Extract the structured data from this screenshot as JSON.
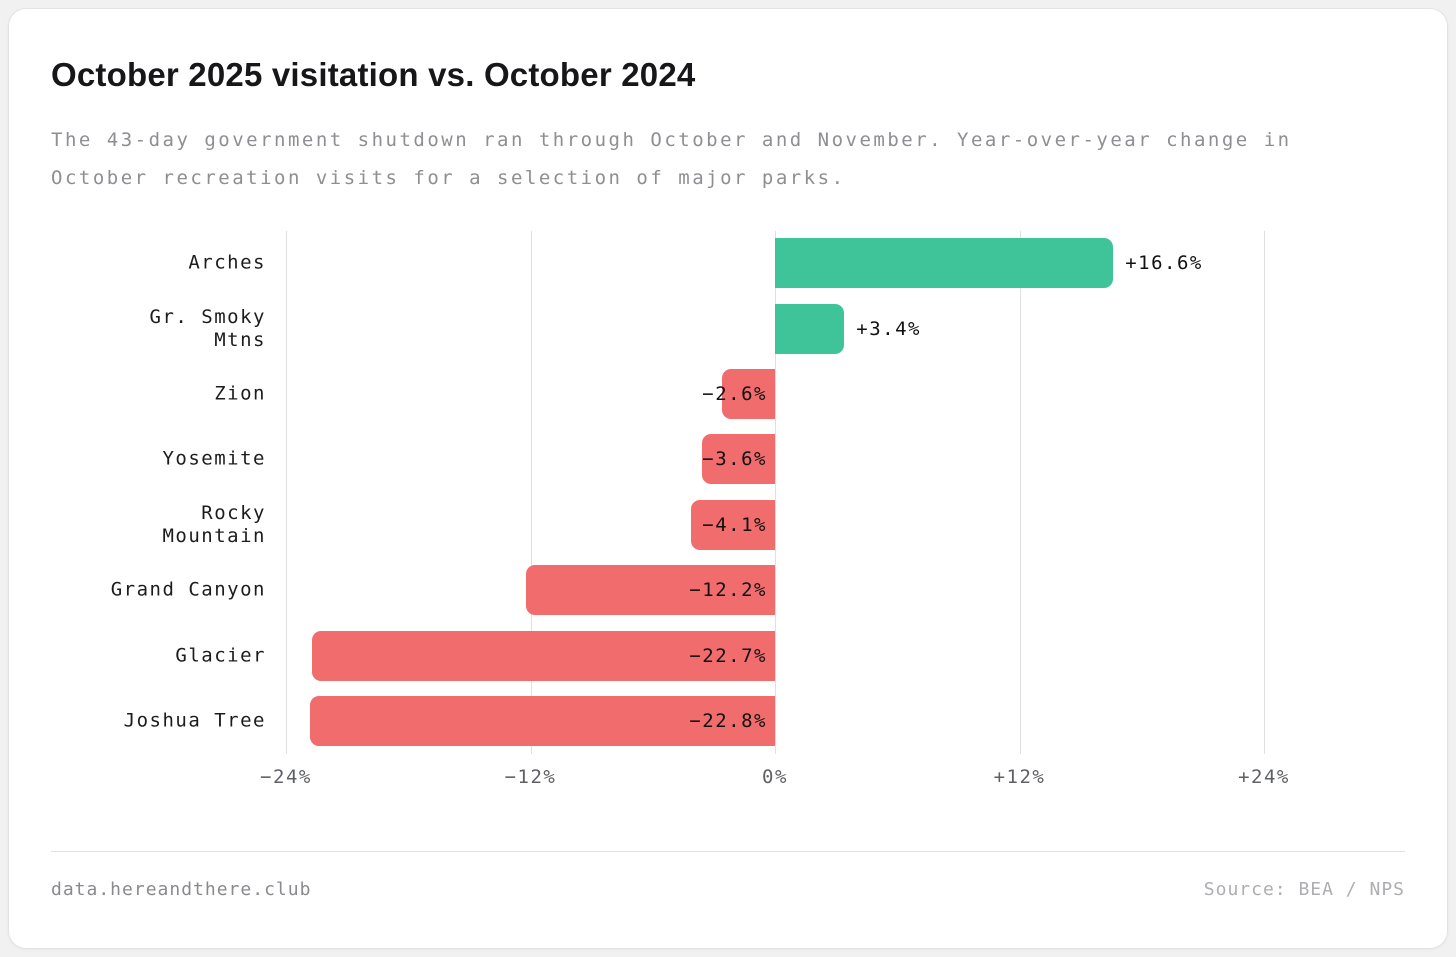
{
  "page": {
    "title": "October 2025 visitation vs. October 2024",
    "subtitle": "The 43-day government shutdown ran through October and November. Year-over-year change in October recreation visits for a selection of major parks.",
    "footer": {
      "left": "data.hereandthere.club",
      "right": "Source: BEA / NPS"
    }
  },
  "colors": {
    "page_bg": "#f1f1f2",
    "card_bg": "#ffffff",
    "border": "#e3e3e5",
    "title_text": "#17171a",
    "subtitle_text": "#8e8e93",
    "label_text": "#1c1c1e",
    "value_text": "#111111",
    "tick_text": "#5f6065",
    "gridline": "#e0e0e0",
    "positive_bar": "#3fc49a",
    "negative_bar": "#f16c6c",
    "footer_left_text": "#8a8a8e",
    "footer_right_text": "#aeaeb2"
  },
  "chart_data": {
    "type": "bar",
    "orientation": "horizontal",
    "title": "October 2025 visitation vs. October 2024",
    "categories": [
      "Arches",
      "Gr. Smoky\nMtns",
      "Zion",
      "Yosemite",
      "Rocky\nMountain",
      "Grand Canyon",
      "Glacier",
      "Joshua Tree"
    ],
    "values": [
      16.6,
      3.4,
      -2.6,
      -3.6,
      -4.1,
      -12.2,
      -22.7,
      -22.8
    ],
    "value_labels": [
      "+16.6%",
      "+3.4%",
      "−2.6%",
      "−3.6%",
      "−4.1%",
      "−12.2%",
      "−22.7%",
      "−22.8%"
    ],
    "xlim": [
      -24,
      24
    ],
    "x_ticks": [
      -24,
      -12,
      0,
      12,
      24
    ],
    "x_tick_labels": [
      "−24%",
      "−12%",
      "0%",
      "+12%",
      "+24%"
    ],
    "xlabel": "",
    "ylabel": "",
    "grid": true,
    "legend": false,
    "unit": "percent change"
  }
}
